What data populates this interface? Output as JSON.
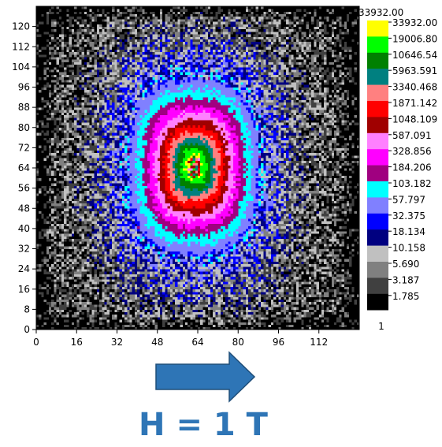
{
  "chart_data": {
    "type": "heatmap",
    "description_scale": "log",
    "x_ticks": [
      0,
      16,
      32,
      48,
      64,
      80,
      96,
      112
    ],
    "y_ticks": [
      0,
      8,
      16,
      24,
      32,
      40,
      48,
      56,
      64,
      72,
      80,
      88,
      96,
      104,
      112,
      120
    ],
    "xlim": [
      0,
      128
    ],
    "ylim": [
      0,
      128
    ],
    "colorbar": {
      "max_label": "33932.00",
      "min_label": "1",
      "levels": [
        {
          "label": "33932.00",
          "color": "#ffff00"
        },
        {
          "label": "19006.80",
          "color": "#00ff00"
        },
        {
          "label": "10646.54",
          "color": "#008000"
        },
        {
          "label": "5963.591",
          "color": "#008080"
        },
        {
          "label": "3340.468",
          "color": "#ff8080"
        },
        {
          "label": "1871.142",
          "color": "#ff0000"
        },
        {
          "label": "1048.109",
          "color": "#a00000"
        },
        {
          "label": "587.091",
          "color": "#ff80ff"
        },
        {
          "label": "328.856",
          "color": "#ff00ff"
        },
        {
          "label": "184.206",
          "color": "#a00080"
        },
        {
          "label": "103.182",
          "color": "#00ffff"
        },
        {
          "label": "57.797",
          "color": "#8080ff"
        },
        {
          "label": "32.375",
          "color": "#0000ff"
        },
        {
          "label": "18.134",
          "color": "#000080"
        },
        {
          "label": "10.158",
          "color": "#c0c0c0"
        },
        {
          "label": "5.690",
          "color": "#808080"
        },
        {
          "label": "3.187",
          "color": "#404040"
        },
        {
          "label": "1.785",
          "color": "#000000"
        }
      ]
    },
    "peak": {
      "x": 62,
      "y": 64,
      "value": 33932.0
    },
    "grid": false
  },
  "annotation": {
    "arrow_direction": "right",
    "arrow_color": "#2e75b6",
    "field_label": "H = 1 T",
    "field_label_color": "#2e75b6"
  }
}
